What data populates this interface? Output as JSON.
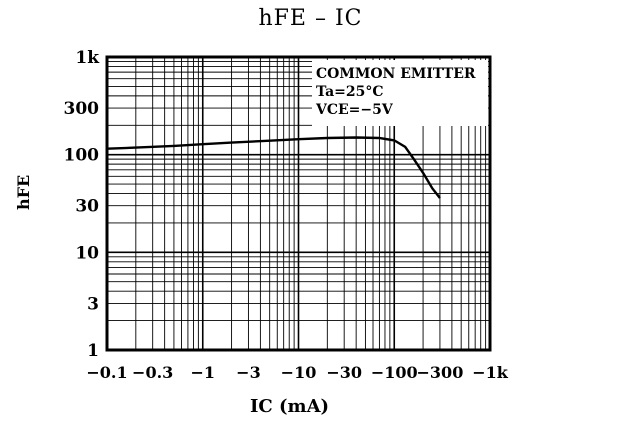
{
  "chart_data": {
    "type": "line",
    "title": "hFE  –  IC",
    "xlabel": "IC   (mA)",
    "ylabel": "hFE",
    "x_tick_labels": [
      "−0.1",
      "−0.3",
      "−1",
      "−3",
      "−10",
      "−30",
      "−100",
      "−300",
      "−1k"
    ],
    "x_ticks": [
      0.1,
      0.3,
      1,
      3,
      10,
      30,
      100,
      300,
      1000
    ],
    "y_tick_labels": [
      "1",
      "3",
      "10",
      "30",
      "100",
      "300",
      "1k"
    ],
    "y_ticks": [
      1,
      3,
      10,
      30,
      100,
      300,
      1000
    ],
    "xlim": [
      0.1,
      1000
    ],
    "ylim": [
      1,
      1000
    ],
    "x_scale": "log",
    "y_scale": "log",
    "grid": true,
    "annotation_lines": [
      "COMMON  EMITTER",
      "Ta=25°C",
      "VCE=−5V"
    ],
    "series": [
      {
        "x": [
          0.1,
          0.2,
          0.5,
          1,
          2,
          5,
          10,
          20,
          40,
          70,
          100,
          130,
          160,
          200,
          250,
          300
        ],
        "y": [
          115,
          118,
          123,
          128,
          133,
          139,
          144,
          148,
          150,
          148,
          140,
          120,
          90,
          65,
          45,
          36
        ]
      }
    ]
  }
}
